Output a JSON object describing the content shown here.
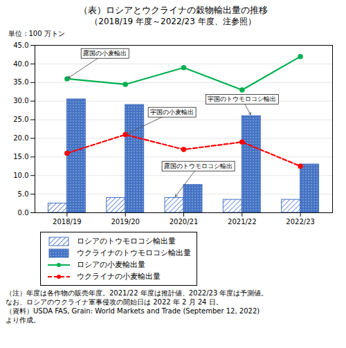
{
  "chart_data": {
    "type": "bar",
    "title": "（表）ロシアとウクライナの穀物輸出量の推移",
    "subtitle": "（2018/19 年度～2022/23 年度、注参照）",
    "y_label": "単位：100 万トン",
    "categories": [
      "2018/19",
      "2019/20",
      "2020/21",
      "2021/22",
      "2022/23"
    ],
    "series": [
      {
        "name": "ロシアのトウモロコシ輸出量",
        "type": "bar",
        "color": "#4472c4",
        "values": [
          2.5,
          4.0,
          4.0,
          3.5,
          3.5
        ],
        "annotation": "露国のトウモロコシ輸出"
      },
      {
        "name": "ウクライナのトウモロコシ輸出量",
        "type": "bar",
        "color": "#4472c4",
        "values": [
          30.5,
          29.0,
          7.5,
          26.0,
          13.0
        ],
        "annotation": "宇国のトウモロコシ輸出"
      },
      {
        "name": "ロシアの小麦輸出量",
        "type": "line",
        "color": "#00b050",
        "line_style": "solid",
        "marker": "circle",
        "values": [
          36.0,
          34.5,
          39.0,
          33.0,
          42.0
        ],
        "annotation": "露国の小麦輸出"
      },
      {
        "name": "ウクライナの小麦輸出量",
        "type": "line",
        "color": "#ff0000",
        "line_style": "dashed",
        "marker": "circle",
        "values": [
          16.0,
          21.0,
          17.0,
          19.0,
          12.5
        ],
        "annotation": "宇国の小麦輸出"
      }
    ],
    "ylim": [
      0.0,
      45.0
    ],
    "yticks": [
      {
        "value": 0,
        "label": "0.0"
      },
      {
        "value": 5,
        "label": "5.0"
      },
      {
        "value": 10,
        "label": "10.0"
      },
      {
        "value": 15,
        "label": "15.0"
      },
      {
        "value": 20,
        "label": "20.0"
      },
      {
        "value": 25,
        "label": "25.0"
      },
      {
        "value": 30,
        "label": "30.0"
      },
      {
        "value": 35,
        "label": "35.0"
      },
      {
        "value": 40,
        "label": "40.0"
      },
      {
        "value": 45,
        "label": "45.0"
      }
    ],
    "grid": true,
    "footnotes": [
      "（注）年度は各作物の販売年度。2021/22 年度は推計値、2022/23 年度は予測値。",
      "なお、ロシアのウクライナ軍事侵攻の開始日は 2022 年 2 月 24 日。",
      "（資料）USDA FAS, Grain: World Markets and Trade (September 12, 2022)",
      "より作成。"
    ]
  }
}
